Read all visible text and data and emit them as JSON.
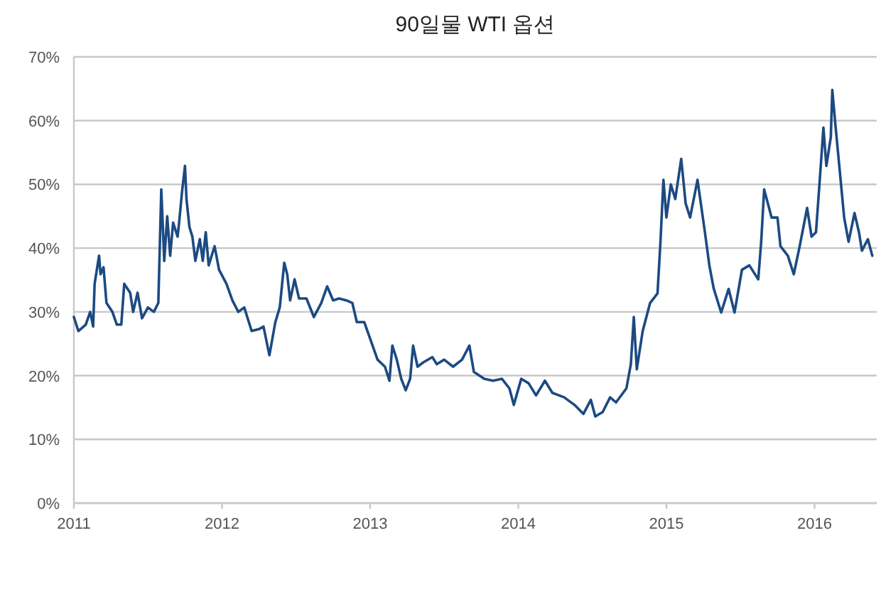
{
  "chart_data": {
    "type": "line",
    "title": "90일물 WTI 옵션",
    "x": [
      2011.0,
      2011.03,
      2011.08,
      2011.11,
      2011.13,
      2011.14,
      2011.17,
      2011.18,
      2011.2,
      2011.22,
      2011.26,
      2011.29,
      2011.32,
      2011.34,
      2011.38,
      2011.4,
      2011.43,
      2011.46,
      2011.5,
      2011.54,
      2011.57,
      2011.59,
      2011.61,
      2011.63,
      2011.65,
      2011.67,
      2011.7,
      2011.71,
      2011.73,
      2011.75,
      2011.76,
      2011.78,
      2011.8,
      2011.82,
      2011.85,
      2011.87,
      2011.89,
      2011.91,
      2011.95,
      2011.98,
      2012.03,
      2012.07,
      2012.11,
      2012.15,
      2012.2,
      2012.25,
      2012.28,
      2012.32,
      2012.36,
      2012.39,
      2012.42,
      2012.44,
      2012.46,
      2012.49,
      2012.52,
      2012.57,
      2012.62,
      2012.67,
      2012.71,
      2012.75,
      2012.79,
      2012.84,
      2012.88,
      2012.91,
      2012.96,
      2013.0,
      2013.05,
      2013.1,
      2013.13,
      2013.15,
      2013.18,
      2013.21,
      2013.24,
      2013.27,
      2013.29,
      2013.32,
      2013.36,
      2013.42,
      2013.45,
      2013.5,
      2013.56,
      2013.62,
      2013.67,
      2013.7,
      2013.77,
      2013.83,
      2013.89,
      2013.94,
      2013.97,
      2014.02,
      2014.07,
      2014.12,
      2014.18,
      2014.23,
      2014.31,
      2014.38,
      2014.44,
      2014.49,
      2014.52,
      2014.57,
      2014.62,
      2014.66,
      2014.73,
      2014.76,
      2014.78,
      2014.8,
      2014.84,
      2014.89,
      2014.94,
      2014.96,
      2014.98,
      2015.0,
      2015.03,
      2015.06,
      2015.1,
      2015.13,
      2015.16,
      2015.21,
      2015.26,
      2015.29,
      2015.32,
      2015.37,
      2015.42,
      2015.46,
      2015.51,
      2015.56,
      2015.62,
      2015.64,
      2015.66,
      2015.71,
      2015.75,
      2015.77,
      2015.82,
      2015.86,
      2015.9,
      2015.95,
      2015.98,
      2016.01,
      2016.04,
      2016.06,
      2016.08,
      2016.11,
      2016.12,
      2016.14,
      2016.17,
      2016.2,
      2016.23,
      2016.27,
      2016.3,
      2016.32,
      2016.36,
      2016.39
    ],
    "series": [
      {
        "color": "#1c4a82",
        "values": [
          29.2,
          27,
          28,
          30,
          27.7,
          34.4,
          38.8,
          35.9,
          37,
          31.4,
          30,
          28,
          28,
          34.4,
          33,
          30,
          33,
          29,
          30.7,
          30,
          31.4,
          49.2,
          38,
          45,
          38.8,
          44,
          41.8,
          43.9,
          48.8,
          52.9,
          47.7,
          43.3,
          41.8,
          38,
          41.4,
          38,
          42.5,
          37.3,
          40.3,
          36.6,
          34.4,
          31.8,
          30,
          30.7,
          27,
          27.3,
          27.7,
          23.2,
          28.4,
          30.7,
          37.7,
          35.9,
          31.8,
          35.1,
          32.1,
          32.1,
          29.2,
          31.4,
          34,
          31.8,
          32.1,
          31.8,
          31.4,
          28.4,
          28.4,
          25.8,
          22.5,
          21.4,
          19.2,
          24.7,
          22.5,
          19.5,
          17.7,
          19.5,
          24.7,
          21.4,
          22.1,
          22.9,
          21.8,
          22.5,
          21.4,
          22.5,
          24.7,
          20.6,
          19.5,
          19.2,
          19.5,
          18,
          15.4,
          19.5,
          18.8,
          16.9,
          19.2,
          17.3,
          16.6,
          15.4,
          14,
          16.2,
          13.6,
          14.3,
          16.6,
          15.8,
          18,
          21.8,
          29.2,
          21,
          27,
          31.4,
          32.9,
          41,
          50.7,
          44.8,
          50,
          47.7,
          54,
          47,
          44.8,
          50.7,
          42.5,
          37.3,
          33.6,
          29.9,
          33.6,
          29.9,
          36.6,
          37.3,
          35.1,
          41,
          49.2,
          44.8,
          44.8,
          40.3,
          38.8,
          35.9,
          40.3,
          46.3,
          41.8,
          42.5,
          52.2,
          58.9,
          52.9,
          57.4,
          64.8,
          59.6,
          52.2,
          44.8,
          41,
          45.5,
          42.5,
          39.6,
          41.4,
          38.8
        ]
      }
    ],
    "xlim": [
      2011,
      2016.42
    ],
    "ylim": [
      0,
      70
    ],
    "xticks": [
      2011,
      2012,
      2013,
      2014,
      2015,
      2016
    ],
    "yticks": [
      {
        "value": 0,
        "label": "0%"
      },
      {
        "value": 10,
        "label": "10%"
      },
      {
        "value": 20,
        "label": "20%"
      },
      {
        "value": 30,
        "label": "30%"
      },
      {
        "value": 40,
        "label": "40%"
      },
      {
        "value": 50,
        "label": "50%"
      },
      {
        "value": 60,
        "label": "60%"
      },
      {
        "value": 70,
        "label": "70%"
      }
    ],
    "grid": "y"
  }
}
